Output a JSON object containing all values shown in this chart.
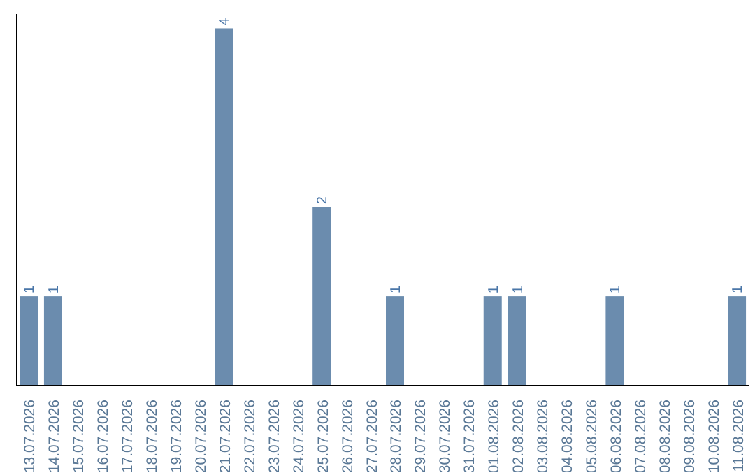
{
  "chart_data": {
    "type": "bar",
    "categories": [
      "13.07.2026",
      "14.07.2026",
      "15.07.2026",
      "16.07.2026",
      "17.07.2026",
      "18.07.2026",
      "19.07.2026",
      "20.07.2026",
      "21.07.2026",
      "22.07.2026",
      "23.07.2026",
      "24.07.2026",
      "25.07.2026",
      "26.07.2026",
      "27.07.2026",
      "28.07.2026",
      "29.07.2026",
      "30.07.2026",
      "31.07.2026",
      "01.08.2026",
      "02.08.2026",
      "03.08.2026",
      "04.08.2026",
      "05.08.2026",
      "06.08.2026",
      "07.08.2026",
      "08.08.2026",
      "09.08.2026",
      "10.08.2026",
      "11.08.2026"
    ],
    "values": [
      1,
      1,
      0,
      0,
      0,
      0,
      0,
      0,
      4,
      0,
      0,
      0,
      2,
      0,
      0,
      1,
      0,
      0,
      0,
      1,
      1,
      0,
      0,
      0,
      1,
      0,
      0,
      0,
      0,
      1
    ],
    "value_labels": [
      "1",
      "1",
      null,
      null,
      null,
      null,
      null,
      null,
      "4",
      null,
      null,
      null,
      "2",
      null,
      null,
      "1",
      null,
      null,
      null,
      "1",
      "1",
      null,
      null,
      null,
      "1",
      null,
      null,
      null,
      null,
      "1"
    ],
    "color": "#6b8cae",
    "grid": false,
    "legend": false,
    "tick_labels": "x"
  }
}
